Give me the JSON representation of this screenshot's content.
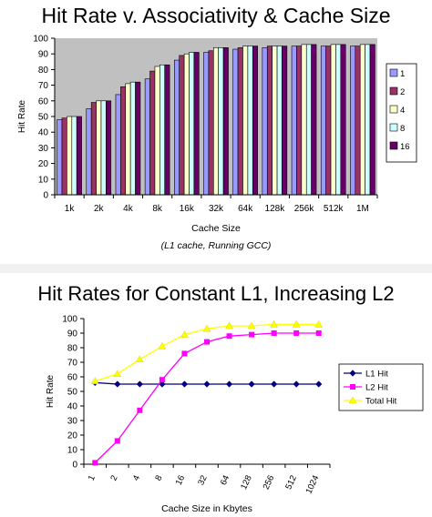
{
  "chart_data": [
    {
      "type": "bar",
      "title": "Hit Rate v. Associativity & Cache Size",
      "caption": "(L1 cache, Running GCC)",
      "xlabel": "Cache Size",
      "ylabel": "Hit Rate",
      "ylim": [
        0,
        100
      ],
      "yticks": [
        "0",
        "10",
        "20",
        "30",
        "40",
        "50",
        "60",
        "70",
        "80",
        "90",
        "100"
      ],
      "grid": false,
      "legend_position": "right",
      "categories": [
        "1k",
        "2k",
        "4k",
        "8k",
        "16k",
        "32k",
        "64k",
        "128k",
        "256k",
        "512k",
        "1M"
      ],
      "series": [
        {
          "name": "1",
          "color": "#9999ff",
          "values": [
            48,
            55,
            64,
            74,
            86,
            91,
            93,
            94,
            95,
            95,
            95
          ]
        },
        {
          "name": "2",
          "color": "#993366",
          "values": [
            49,
            59,
            69,
            79,
            89,
            92,
            94,
            95,
            95,
            95,
            95
          ]
        },
        {
          "name": "4",
          "color": "#ffffcc",
          "values": [
            50,
            60,
            71,
            82,
            90,
            94,
            95,
            95,
            96,
            96,
            96
          ]
        },
        {
          "name": "8",
          "color": "#ccffff",
          "values": [
            50,
            60,
            72,
            83,
            91,
            94,
            95,
            95,
            96,
            96,
            96
          ]
        },
        {
          "name": "16",
          "color": "#660066",
          "values": [
            50,
            60,
            72,
            83,
            91,
            94,
            95,
            95,
            96,
            96,
            96
          ]
        }
      ]
    },
    {
      "type": "line",
      "title": "Hit Rates for Constant L1, Increasing L2",
      "xlabel": "Cache Size in Kbytes",
      "ylabel": "Hit Rate",
      "ylim": [
        0,
        100
      ],
      "yticks": [
        "0",
        "10",
        "20",
        "30",
        "40",
        "50",
        "60",
        "70",
        "80",
        "90",
        "100"
      ],
      "grid": false,
      "legend_position": "right",
      "x": [
        "1",
        "2",
        "4",
        "8",
        "16",
        "32",
        "64",
        "128",
        "256",
        "512",
        "1024"
      ],
      "series": [
        {
          "name": "L1 Hit",
          "color": "#000080",
          "marker": "diamond",
          "values": [
            56,
            55,
            55,
            55,
            55,
            55,
            55,
            55,
            55,
            55,
            55
          ]
        },
        {
          "name": "L2 Hit",
          "color": "#ff00ff",
          "marker": "square",
          "values": [
            1,
            16,
            37,
            58,
            76,
            84,
            88,
            89,
            90,
            90,
            90
          ]
        },
        {
          "name": "Total Hit",
          "color": "#ffff00",
          "marker": "triangle",
          "values": [
            57,
            62,
            72,
            81,
            89,
            93,
            95,
            95,
            96,
            96,
            96
          ]
        }
      ]
    }
  ]
}
